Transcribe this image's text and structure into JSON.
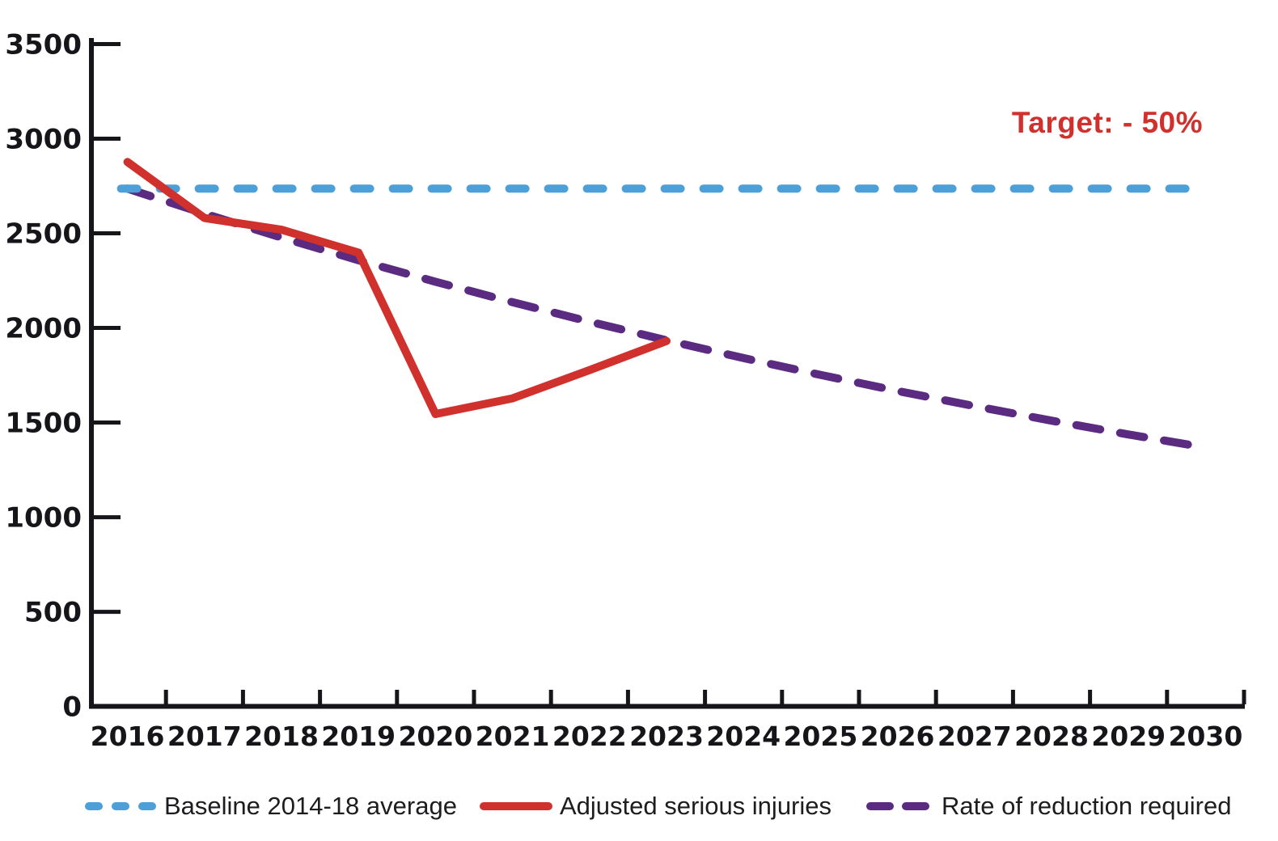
{
  "chart_data": {
    "type": "line",
    "title": "",
    "annotation": "Target: - 50%",
    "annotation_color": "#d0312d",
    "xlabel": "",
    "ylabel": "",
    "ylim": [
      0,
      3500
    ],
    "yticks": [
      0,
      500,
      1000,
      1500,
      2000,
      2500,
      3000,
      3500
    ],
    "x_years": [
      2016,
      2017,
      2018,
      2019,
      2020,
      2021,
      2022,
      2023,
      2024,
      2025,
      2026,
      2027,
      2028,
      2029,
      2030
    ],
    "grid": false,
    "legend_position": "bottom",
    "axis_color": "#16161a",
    "series": [
      {
        "key": "reduction",
        "name": "Rate of reduction required",
        "color": "#5b2b82",
        "style": "dashed",
        "dash": "30 25",
        "x": [
          2016,
          2017,
          2018,
          2019,
          2020,
          2021,
          2022,
          2023,
          2024,
          2025,
          2026,
          2027,
          2028,
          2029,
          2030
        ],
        "values": [
          2736,
          2604,
          2478,
          2358,
          2244,
          2136,
          2033,
          1935,
          1841,
          1752,
          1667,
          1587,
          1510,
          1437,
          1368
        ]
      },
      {
        "key": "baseline",
        "name": "Baseline 2014-18 average",
        "color": "#4c9fd7",
        "style": "dashed",
        "dash": "20 28",
        "x": [
          2016,
          2030
        ],
        "values": [
          2736,
          2736
        ]
      },
      {
        "key": "adjusted",
        "name": "Adjusted serious injuries",
        "color": "#d0312d",
        "style": "solid",
        "dash": "",
        "x": [
          2016,
          2017,
          2018,
          2019,
          2020,
          2021,
          2022,
          2023
        ],
        "values": [
          2877,
          2581,
          2519,
          2398,
          1545,
          1628,
          1777,
          1931
        ]
      }
    ]
  },
  "legend": {
    "baseline_label": "Baseline 2014-18 average",
    "adjusted_label": "Adjusted serious injuries",
    "reduction_label": "Rate of reduction required"
  }
}
